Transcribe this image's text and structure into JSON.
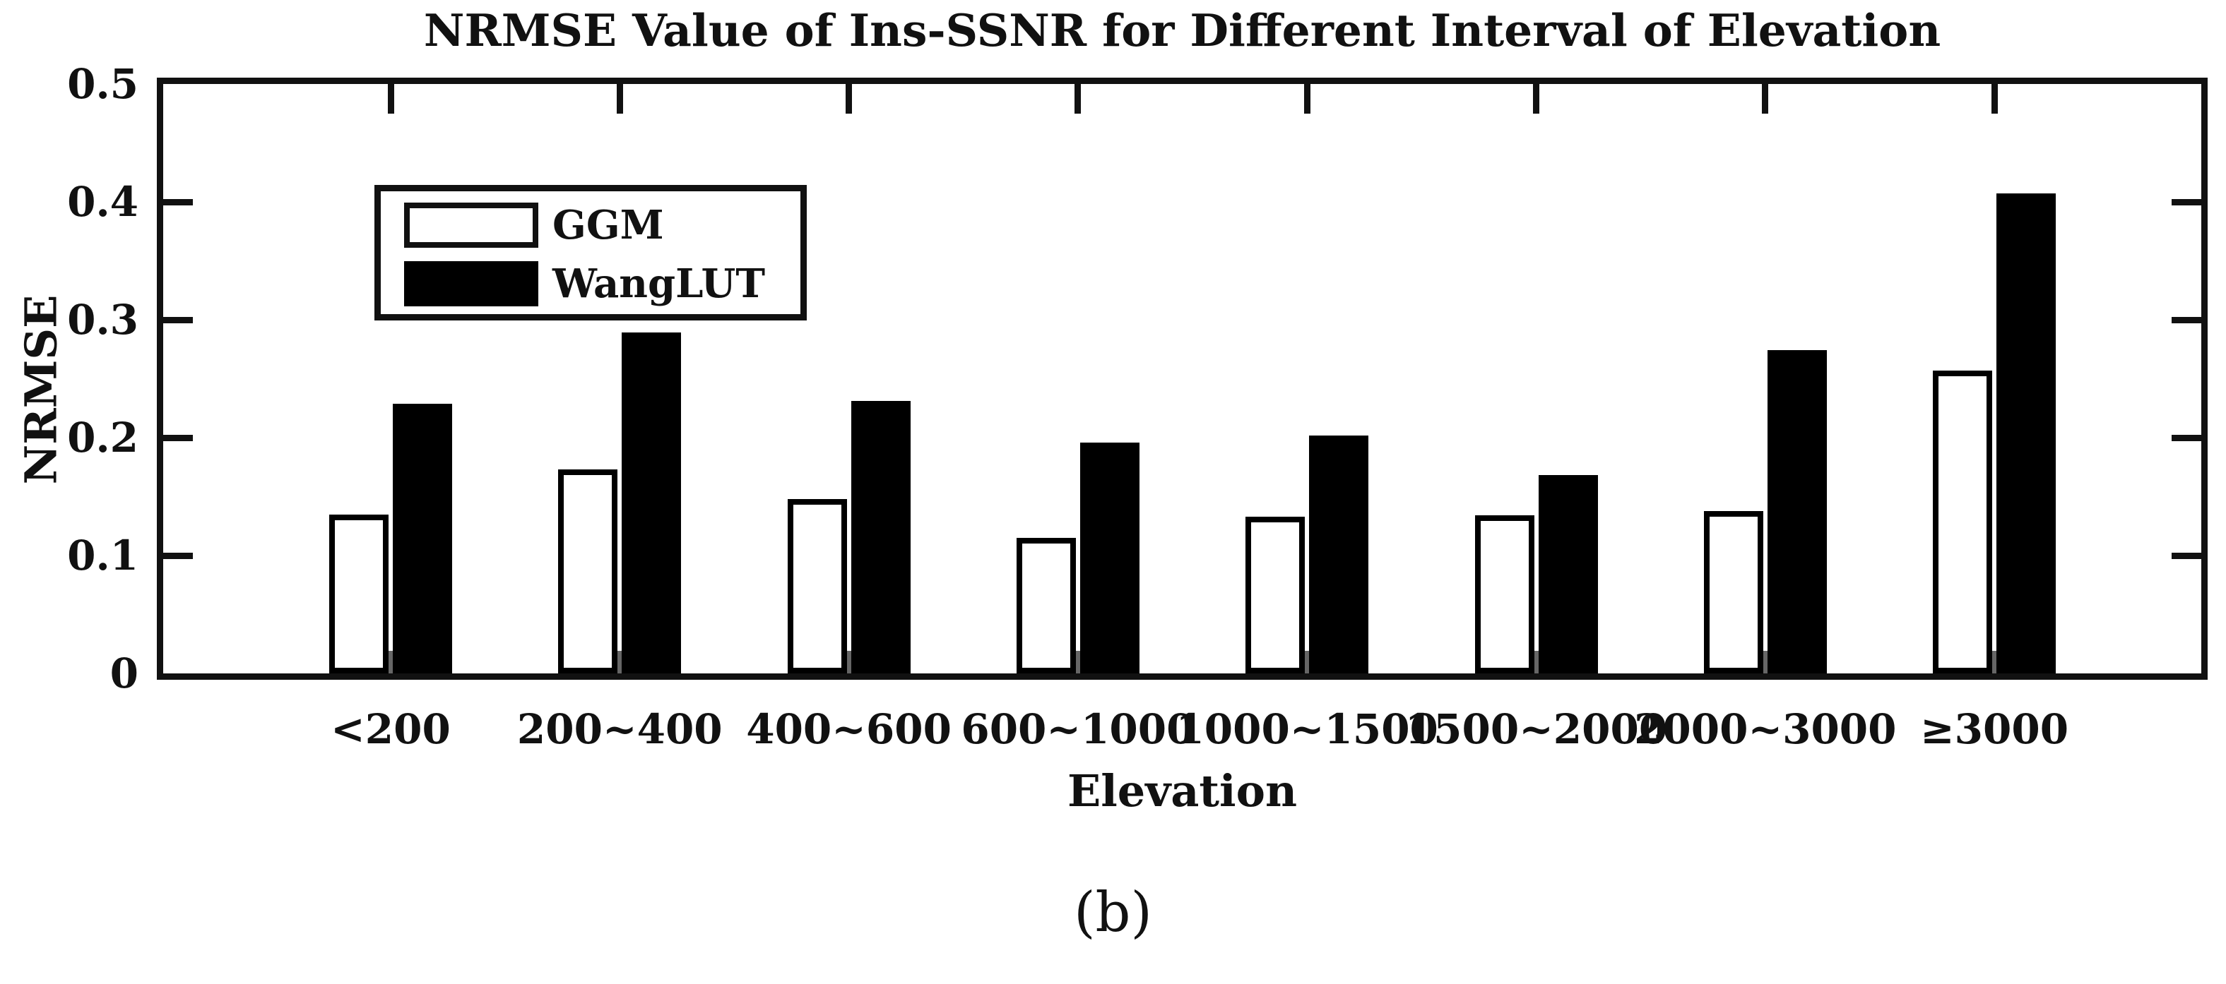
{
  "figure": {
    "caption": "(b)"
  },
  "chart_data": {
    "type": "bar",
    "title": "NRMSE Value of Ins-SSNR for Different Interval of Elevation",
    "xlabel": "Elevation",
    "ylabel": "NRMSE",
    "categories": [
      "<200",
      "200~400",
      "400~600",
      "600~1000",
      "1000~1500",
      "1500~2000",
      "2000~3000",
      "≥3000"
    ],
    "series": [
      {
        "name": "GGM",
        "style": "white-outlined",
        "values": [
          0.135,
          0.173,
          0.148,
          0.115,
          0.133,
          0.134,
          0.138,
          0.257
        ]
      },
      {
        "name": "WangLUT",
        "style": "black-filled",
        "values": [
          0.229,
          0.289,
          0.231,
          0.196,
          0.202,
          0.168,
          0.274,
          0.407
        ]
      }
    ],
    "ylim": [
      0,
      0.5
    ],
    "yticks": [
      0,
      0.1,
      0.2,
      0.3,
      0.4,
      0.5
    ],
    "ytick_labels": [
      "0",
      "0.1",
      "0.2",
      "0.3",
      "0.4",
      "0.5"
    ],
    "grid": false,
    "legend_position": "upper-left",
    "colors": {
      "axis": "#111111",
      "bar_fill_ggm": "#ffffff",
      "bar_fill_wanglut": "#000000",
      "bottom_tick_sliver": "#666666"
    }
  }
}
